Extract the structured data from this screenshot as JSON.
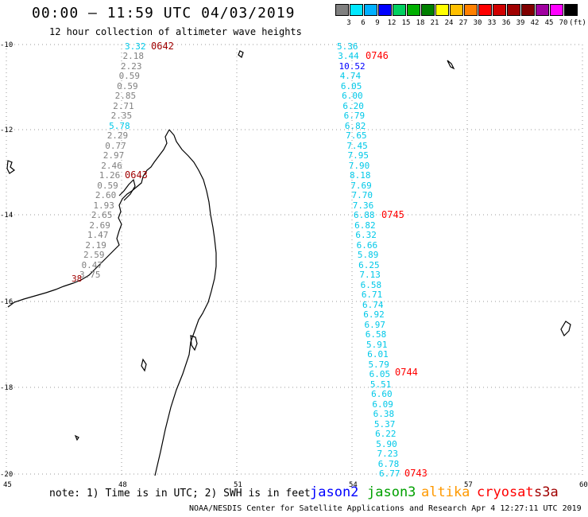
{
  "title": "00:00 – 11:59 UTC 04/03/2019",
  "subtitle": "12 hour collection of altimeter wave heights",
  "legend": {
    "labels": [
      "3",
      "6",
      "9",
      "12",
      "15",
      "18",
      "21",
      "24",
      "27",
      "30",
      "33",
      "36",
      "39",
      "42",
      "45",
      "70",
      "(ft)"
    ],
    "colors": [
      "#808080",
      "#00e8ff",
      "#00b0ff",
      "#0000ff",
      "#00d060",
      "#00b000",
      "#008000",
      "#ffff00",
      "#ffc000",
      "#ff8000",
      "#ff0000",
      "#d00000",
      "#a00000",
      "#800000",
      "#a000a0",
      "#ff00ff",
      "#000000"
    ]
  },
  "axes": {
    "lat_labels": [
      "-10",
      "-12",
      "-14",
      "-16",
      "-18",
      "-20"
    ],
    "lon_labels": [
      "45",
      "48",
      "51",
      "54",
      "57",
      "60"
    ]
  },
  "track1": {
    "values": [
      "3.32",
      "2.18",
      "2.23",
      "0.59",
      "0.59",
      "2.85",
      "2.71",
      "2.35",
      "5.78",
      "2.29",
      "0.77",
      "2.97",
      "2.46",
      "1.26",
      "0.59",
      "2.60",
      "1.93",
      "2.65",
      "2.69",
      "1.47",
      "2.19",
      "2.59",
      "0.47",
      "3.75"
    ],
    "colors": [
      "#00c8e8",
      "#808080",
      "#808080",
      "#808080",
      "#808080",
      "#808080",
      "#808080",
      "#808080",
      "#00c8e8",
      "#808080",
      "#808080",
      "#808080",
      "#808080",
      "#808080",
      "#808080",
      "#808080",
      "#808080",
      "#808080",
      "#808080",
      "#808080",
      "#808080",
      "#808080",
      "#808080",
      "#808080"
    ],
    "times": [
      "0642",
      "0643"
    ],
    "extra_time": "38"
  },
  "track2": {
    "values": [
      "5.36",
      "3.44",
      "10.52",
      "4.74",
      "6.05",
      "6.00",
      "6.20",
      "6.79",
      "6.82",
      "7.65",
      "7.45",
      "7.95",
      "7.90",
      "8.18",
      "7.69",
      "7.70",
      "7.36",
      "6.88",
      "6.82",
      "6.32",
      "6.66",
      "5.89",
      "6.25",
      "7.13",
      "6.58",
      "6.71",
      "6.74",
      "6.92",
      "6.97",
      "6.58",
      "5.91",
      "6.01",
      "5.79",
      "6.05",
      "5.51",
      "6.60",
      "6.09",
      "6.38",
      "5.37",
      "6.22",
      "5.90",
      "7.23",
      "6.78",
      "6.77"
    ],
    "colors": [
      "#00c8e8",
      "#00c8e8",
      "#0000ff",
      "#00c8e8",
      "#00c8e8",
      "#00c8e8",
      "#00c8e8",
      "#00c8e8",
      "#00c8e8",
      "#00c8e8",
      "#00c8e8",
      "#00c8e8",
      "#00c8e8",
      "#00c8e8",
      "#00c8e8",
      "#00c8e8",
      "#00c8e8",
      "#00c8e8",
      "#00c8e8",
      "#00c8e8",
      "#00c8e8",
      "#00c8e8",
      "#00c8e8",
      "#00c8e8",
      "#00c8e8",
      "#00c8e8",
      "#00c8e8",
      "#00c8e8",
      "#00c8e8",
      "#00c8e8",
      "#00c8e8",
      "#00c8e8",
      "#00c8e8",
      "#00c8e8",
      "#00c8e8",
      "#00c8e8",
      "#00c8e8",
      "#00c8e8",
      "#00c8e8",
      "#00c8e8",
      "#00c8e8",
      "#00c8e8",
      "#00c8e8",
      "#00c8e8"
    ],
    "times": [
      "0746",
      "0745",
      "0744",
      "0743"
    ]
  },
  "footer": {
    "note": "note: 1) Time is in UTC; 2) SWH is in feet",
    "satellites": [
      {
        "name": "jason2",
        "color": "#0000ff"
      },
      {
        "name": "jason3",
        "color": "#00a000"
      },
      {
        "name": "altika",
        "color": "#ff9900"
      },
      {
        "name": "cryosat",
        "color": "#ff0000"
      },
      {
        "name": "s3a",
        "color": "#a00000"
      }
    ],
    "credit": "NOAA/NESDIS Center for Satellite Applications and Research   Apr  4 12:27:11 UTC 2019"
  },
  "colors": {
    "time_label_dark": "#a00000",
    "time_label_red": "#ff0000",
    "grid": "#999999"
  }
}
